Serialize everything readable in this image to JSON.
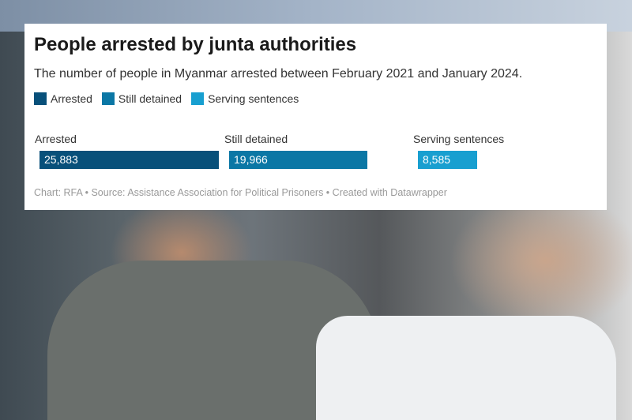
{
  "chart_data": {
    "type": "bar",
    "title": "People arrested by junta authorities",
    "subtitle": "The number of people in Myanmar arrested between February 2021 and January 2024.",
    "categories": [
      "Arrested",
      "Still detained",
      "Serving sentences"
    ],
    "values": [
      25883,
      19966,
      8585
    ],
    "value_labels": [
      "25,883",
      "19,966",
      "8,585"
    ],
    "colors": [
      "#08507a",
      "#0b77a5",
      "#189fd0"
    ],
    "legend": [
      "Arrested",
      "Still detained",
      "Serving sentences"
    ],
    "legend_placement": "top-left",
    "grid": false,
    "footer": "Chart: RFA • Source: Assistance Association for Political Prisoners • Created with Datawrapper"
  }
}
